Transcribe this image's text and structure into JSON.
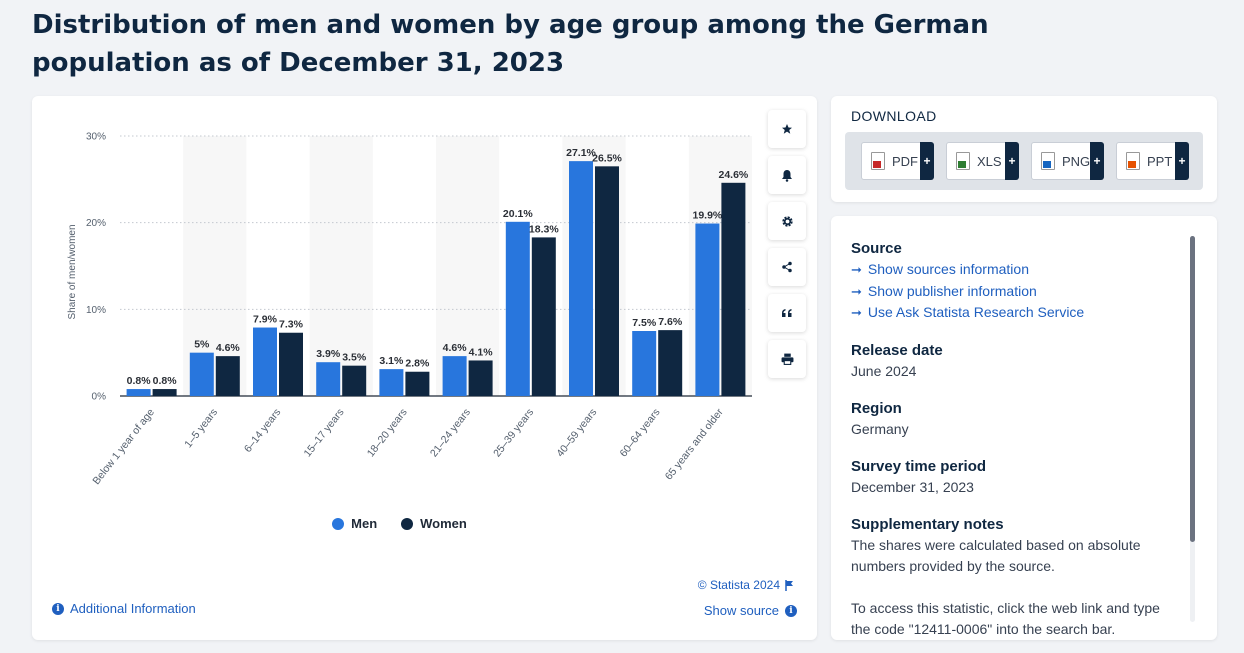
{
  "page": {
    "title": "Distribution of men and women by age group among the German population as of December 31, 2023"
  },
  "chart_data": {
    "type": "bar",
    "categories": [
      "Below 1 year of age",
      "1–5 years",
      "6–14 years",
      "15–17 years",
      "18–20 years",
      "21–24 years",
      "25–39 years",
      "40–59 years",
      "60–64 years",
      "65 years and older"
    ],
    "series": [
      {
        "name": "Men",
        "values": [
          0.8,
          5,
          7.9,
          3.9,
          3.1,
          4.6,
          20.1,
          27.1,
          7.5,
          19.9
        ],
        "labels": [
          "0.8%",
          "5%",
          "7.9%",
          "3.9%",
          "3.1%",
          "4.6%",
          "20.1%",
          "27.1%",
          "7.5%",
          "19.9%"
        ],
        "color": "#2876dd"
      },
      {
        "name": "Women",
        "values": [
          0.8,
          4.6,
          7.3,
          3.5,
          2.8,
          4.1,
          18.3,
          26.5,
          7.6,
          24.6
        ],
        "labels": [
          "0.8%",
          "4.6%",
          "7.3%",
          "3.5%",
          "2.8%",
          "4.1%",
          "18.3%",
          "26.5%",
          "7.6%",
          "24.6%"
        ],
        "color": "#0f2741"
      }
    ],
    "ylabel": "Share of men/women",
    "ylim": [
      0,
      30
    ],
    "yticks": [
      0,
      10,
      20,
      30
    ],
    "ytick_labels": [
      "0%",
      "10%",
      "20%",
      "30%"
    ],
    "grid": true,
    "legend_position": "bottom"
  },
  "chart_footer": {
    "copyright": "© Statista 2024",
    "show_source": "Show source",
    "additional_info": "Additional Information"
  },
  "toolbar": {
    "icons": [
      "star-icon",
      "bell-icon",
      "gear-icon",
      "share-icon",
      "quote-icon",
      "print-icon"
    ]
  },
  "download": {
    "title": "DOWNLOAD",
    "buttons": [
      {
        "label": "PDF",
        "color": "#c62828"
      },
      {
        "label": "XLS",
        "color": "#2e7d32"
      },
      {
        "label": "PNG",
        "color": "#1565c0"
      },
      {
        "label": "PPT",
        "color": "#e65100"
      }
    ],
    "plus": "+"
  },
  "info": {
    "source_heading": "Source",
    "links": [
      "Show sources information",
      "Show publisher information",
      "Use Ask Statista Research Service"
    ],
    "release_heading": "Release date",
    "release_value": "June 2024",
    "region_heading": "Region",
    "region_value": "Germany",
    "period_heading": "Survey time period",
    "period_value": "December 31, 2023",
    "notes_heading": "Supplementary notes",
    "notes_text": "The shares were calculated based on absolute numbers provided by the source.",
    "notes_text2": "To access this statistic, click the web link and type the code \"12411-0006\" into the search bar."
  }
}
